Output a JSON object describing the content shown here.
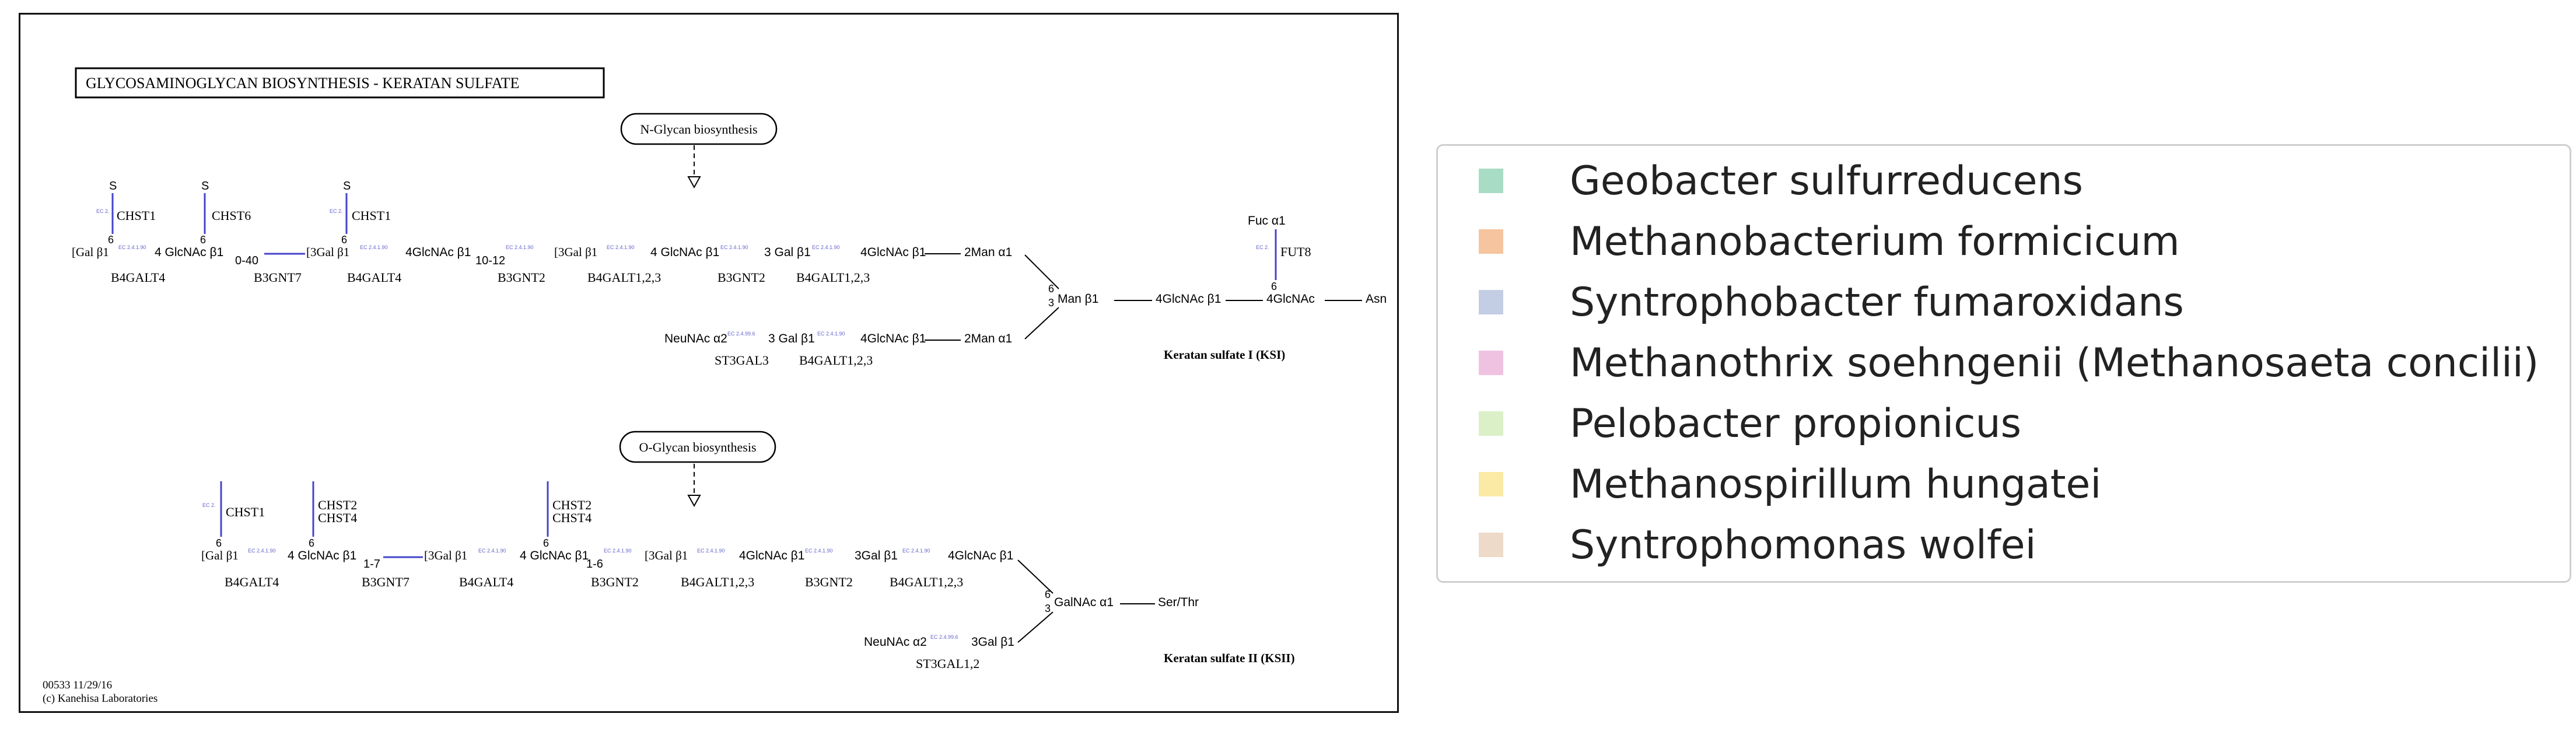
{
  "map": {
    "title": "GLYCOSAMINOGLYCAN BIOSYNTHESIS - KERATAN SULFATE",
    "nglycan_link": "N-Glycan biosynthesis",
    "oglycan_link": "O-Glycan biosynthesis",
    "ksi_label": "Keratan sulfate I (KSI)",
    "ksii_label": "Keratan sulfate II (KSII)",
    "map_id": "00533 11/29/16",
    "copyright": "(c) Kanehisa Laboratories",
    "ec_tag": "EC 2.4.1.90",
    "ec_tag_short": "EC 2.",
    "ec_tag_st3gal": "EC 2.4.99.6",
    "top": {
      "s": "S",
      "six": "6",
      "three": "3",
      "sixthree": "6|3",
      "chst1": "CHST1",
      "chst6": "CHST6",
      "galb1": "[Gal β1",
      "glcnac4": "4 GlcNAc β1",
      "rep1": "0-40",
      "gal3": "[3Gal β1",
      "glcnac4b": "4GlcNAc β1",
      "rep2": "10-12",
      "gal3b": "[3Gal β1",
      "glcnac4c": "4 GlcNAc β1",
      "gal3c": "3 Gal β1",
      "glcnac4d": "4GlcNAc β1",
      "man2a": "2Man α1",
      "man6": "Man β1",
      "glcnac4e": "4GlcNAc β1",
      "glcnac4f": "4GlcNAc",
      "asn": "Asn",
      "fuc": "Fuc α1",
      "fut8": "FUT8",
      "neunac": "NeuNAc α2",
      "gal3d": "3 Gal β1",
      "glcnac4g": "4GlcNAc β1",
      "man2b": "2Man α1",
      "b4galt4": "B4GALT4",
      "b3gnt7": "B3GNT7",
      "b4galt4b": "B4GALT4",
      "b3gnt2": "B3GNT2",
      "b4galt123": "B4GALT1,2,3",
      "b3gnt2b": "B3GNT2",
      "b4galt123b": "B4GALT1,2,3",
      "st3gal3": "ST3GAL3",
      "b4galt123c": "B4GALT1,2,3"
    },
    "bottom": {
      "chst1": "CHST1",
      "chst2": "CHST2",
      "chst4": "CHST4",
      "chst2b": "CHST2",
      "chst4b": "CHST4",
      "galb1": "[Gal β1",
      "glcnac4": "4 GlcNAc β1",
      "rep1": "1-7",
      "gal3": "[3Gal β1",
      "glcnac4b": "4 GlcNAc β1",
      "rep2": "1-6",
      "gal3b": "[3Gal β1",
      "glcnac4c": "4GlcNAc β1",
      "gal3c": "3Gal β1",
      "glcnac4d": "4GlcNAc β1",
      "galnac": "GalNAc α1",
      "serthr": "Ser/Thr",
      "neunac": "NeuNAc α2",
      "gal3d": "3Gal β1",
      "b4galt4": "B4GALT4",
      "b3gnt7": "B3GNT7",
      "b4galt4b": "B4GALT4",
      "b3gnt2": "B3GNT2",
      "b4galt123": "B4GALT1,2,3",
      "b3gnt2b": "B3GNT2",
      "b4galt123b": "B4GALT1,2,3",
      "st3gal12": "ST3GAL1,2"
    }
  },
  "legend": {
    "items": [
      {
        "label": "Geobacter sulfurreducens",
        "color": "#a8dcc4"
      },
      {
        "label": "Methanobacterium formicicum",
        "color": "#f6c49f"
      },
      {
        "label": "Syntrophobacter fumaroxidans",
        "color": "#c3cde4"
      },
      {
        "label": "Methanothrix soehngenii (Methanosaeta concilii)",
        "color": "#f0c2e2"
      },
      {
        "label": "Pelobacter propionicus",
        "color": "#dcf0c8"
      },
      {
        "label": "Methanospirillum hungatei",
        "color": "#fbeaa6"
      },
      {
        "label": "Syntrophomonas wolfei",
        "color": "#eedac8"
      }
    ]
  }
}
